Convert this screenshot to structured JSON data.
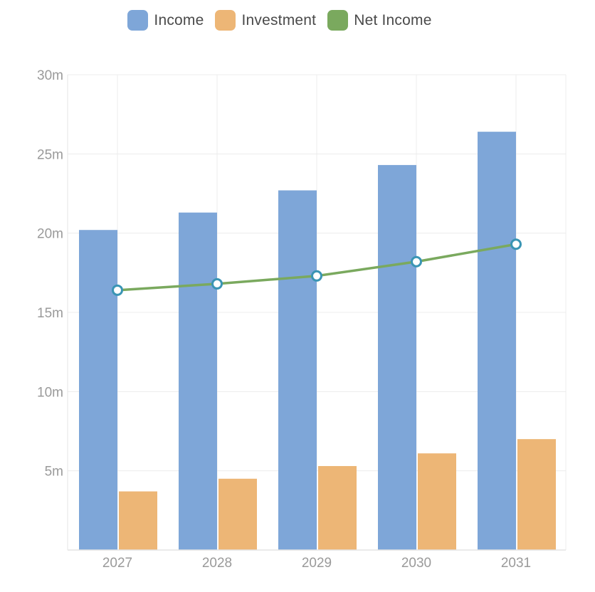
{
  "legend": {
    "position": "top-center",
    "items": [
      {
        "label": "Income",
        "color": "#7ea6d8"
      },
      {
        "label": "Investment",
        "color": "#edb676"
      },
      {
        "label": "Net Income",
        "color": "#7aa95e"
      }
    ]
  },
  "chart_data": {
    "type": "bar",
    "categories": [
      "2027",
      "2028",
      "2029",
      "2030",
      "2031"
    ],
    "series": [
      {
        "name": "Income",
        "type": "bar",
        "color": "#7ea6d8",
        "values": [
          20.2,
          21.3,
          22.7,
          24.3,
          26.4
        ]
      },
      {
        "name": "Investment",
        "type": "bar",
        "color": "#edb676",
        "values": [
          3.7,
          4.5,
          5.3,
          6.1,
          7.0
        ]
      },
      {
        "name": "Net Income",
        "type": "line",
        "color": "#7aa95e",
        "marker_color": "#3a95b4",
        "values": [
          16.4,
          16.8,
          17.3,
          18.2,
          19.3
        ]
      }
    ],
    "ylim": [
      0,
      30
    ],
    "yticks": [
      5,
      10,
      15,
      20,
      25,
      30
    ],
    "ytick_labels": [
      "5m",
      "10m",
      "15m",
      "20m",
      "25m",
      "30m"
    ],
    "grid": true,
    "title": "",
    "xlabel": "",
    "ylabel": ""
  }
}
